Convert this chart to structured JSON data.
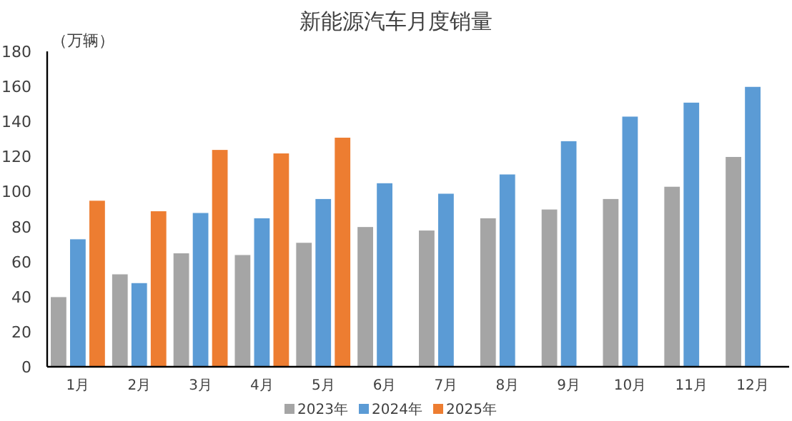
{
  "chart_data": {
    "type": "bar",
    "title": "新能源汽车月度销量",
    "ylabel": "（万辆）",
    "categories": [
      "1月",
      "2月",
      "3月",
      "4月",
      "5月",
      "6月",
      "7月",
      "8月",
      "9月",
      "10月",
      "11月",
      "12月"
    ],
    "series": [
      {
        "name": "2023年",
        "color": "#a5a5a5",
        "values": [
          40,
          53,
          65,
          64,
          71,
          80,
          78,
          85,
          90,
          96,
          103,
          120
        ]
      },
      {
        "name": "2024年",
        "color": "#5b9bd5",
        "values": [
          73,
          48,
          88,
          85,
          96,
          105,
          99,
          110,
          129,
          143,
          151,
          160
        ]
      },
      {
        "name": "2025年",
        "color": "#ed7d31",
        "values": [
          95,
          89,
          124,
          122,
          131,
          null,
          null,
          null,
          null,
          null,
          null,
          null
        ]
      }
    ],
    "ylim": [
      0,
      180
    ],
    "yticks": [
      0,
      20,
      40,
      60,
      80,
      100,
      120,
      140,
      160,
      180
    ],
    "legend": "bottom"
  }
}
